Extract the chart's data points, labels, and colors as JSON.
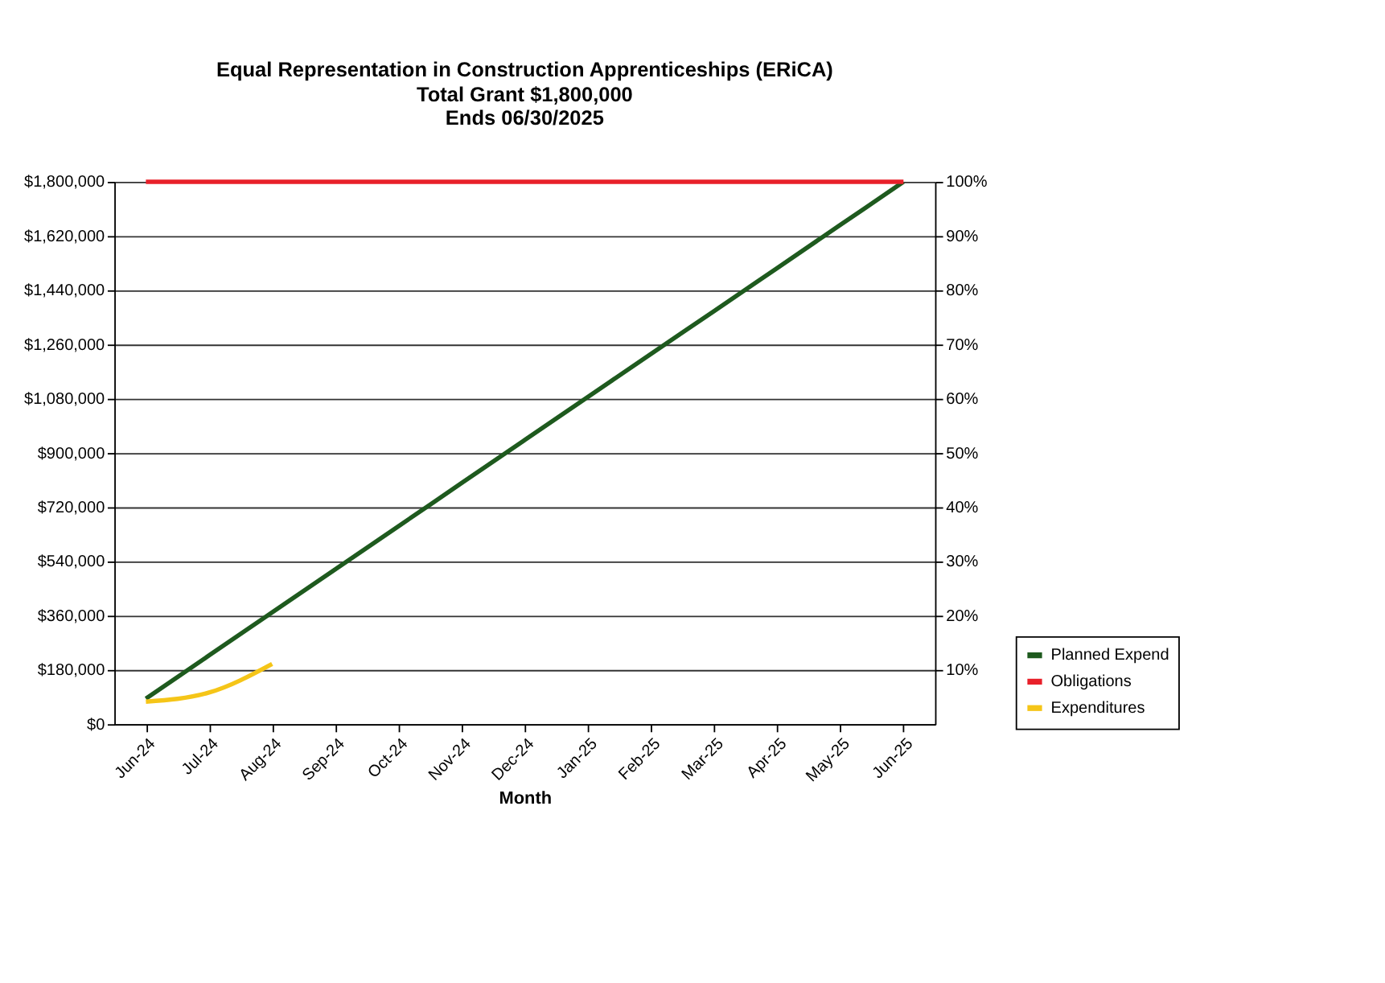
{
  "chart_data": {
    "type": "line",
    "title": "Equal Representation in Construction Apprenticeships (ERiCA)",
    "subtitle": "Total Grant  $1,800,000\nEnds 06/30/2025",
    "xlabel": "Month",
    "categories": [
      "Jun-24",
      "Jul-24",
      "Aug-24",
      "Sep-24",
      "Oct-24",
      "Nov-24",
      "Dec-24",
      "Jan-25",
      "Feb-25",
      "Mar-25",
      "Apr-25",
      "May-25",
      "Jun-25"
    ],
    "series": [
      {
        "name": "Planned Expend",
        "color": "#1e5a1e",
        "values": [
          85000,
          228000,
          371000,
          514000,
          657000,
          800000,
          943000,
          1086000,
          1229000,
          1371000,
          1514000,
          1657000,
          1800000
        ]
      },
      {
        "name": "Obligations",
        "color": "#e8202a",
        "values": [
          1800000,
          1800000,
          1800000,
          1800000,
          1800000,
          1800000,
          1800000,
          1800000,
          1800000,
          1800000,
          1800000,
          1800000,
          1800000
        ]
      },
      {
        "name": "Expenditures",
        "color": "#f5c518",
        "values": [
          75000,
          105000,
          200000,
          null,
          null,
          null,
          null,
          null,
          null,
          null,
          null,
          null,
          null
        ]
      }
    ],
    "ylim": [
      0,
      1800000
    ],
    "yticks": [
      {
        "value": 0,
        "label": "$0"
      },
      {
        "value": 180000,
        "label": "$180,000"
      },
      {
        "value": 360000,
        "label": "$360,000"
      },
      {
        "value": 540000,
        "label": "$540,000"
      },
      {
        "value": 720000,
        "label": "$720,000"
      },
      {
        "value": 900000,
        "label": "$900,000"
      },
      {
        "value": 1080000,
        "label": "$1,080,000"
      },
      {
        "value": 1260000,
        "label": "$1,260,000"
      },
      {
        "value": 1440000,
        "label": "$1,440,000"
      },
      {
        "value": 1620000,
        "label": "$1,620,000"
      },
      {
        "value": 1800000,
        "label": "$1,800,000"
      }
    ],
    "y2lim": [
      0,
      100
    ],
    "y2ticks": [
      {
        "value": 10,
        "label": "10%"
      },
      {
        "value": 20,
        "label": "20%"
      },
      {
        "value": 30,
        "label": "30%"
      },
      {
        "value": 40,
        "label": "40%"
      },
      {
        "value": 50,
        "label": "50%"
      },
      {
        "value": 60,
        "label": "60%"
      },
      {
        "value": 70,
        "label": "70%"
      },
      {
        "value": 80,
        "label": "80%"
      },
      {
        "value": 90,
        "label": "90%"
      },
      {
        "value": 100,
        "label": "100%"
      }
    ],
    "grid": "y",
    "legend": "bottom right",
    "marker": "none",
    "line_style": "solid"
  }
}
